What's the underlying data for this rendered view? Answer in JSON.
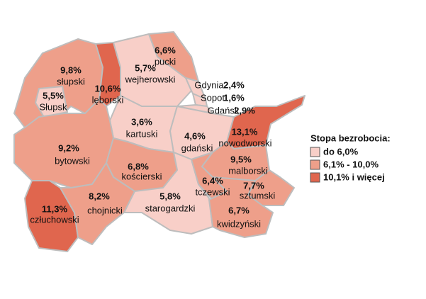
{
  "map": {
    "regions": [
      {
        "name": "słupski",
        "value": 9.8,
        "value_label": "9,8%",
        "color": "#ee9f8a"
      },
      {
        "name": "Słupsk",
        "value": 5.5,
        "value_label": "5,5%",
        "color": "#f8cfc8"
      },
      {
        "name": "lęborski",
        "value": 10.6,
        "value_label": "10,6%",
        "color": "#e0664e"
      },
      {
        "name": "wejherowski",
        "value": 5.7,
        "value_label": "5,7%",
        "color": "#f8cfc8"
      },
      {
        "name": "pucki",
        "value": 6.6,
        "value_label": "6,6%",
        "color": "#ee9f8a"
      },
      {
        "name": "kartuski",
        "value": 3.6,
        "value_label": "3,6%",
        "color": "#f8cfc8"
      },
      {
        "name": "gdański",
        "value": 4.6,
        "value_label": "4,6%",
        "color": "#f8cfc8"
      },
      {
        "name": "nowodworski",
        "value": 13.1,
        "value_label": "13,1%",
        "color": "#e0664e"
      },
      {
        "name": "bytowski",
        "value": 9.2,
        "value_label": "9,2%",
        "color": "#ee9f8a"
      },
      {
        "name": "kościerski",
        "value": 6.8,
        "value_label": "6,8%",
        "color": "#ee9f8a"
      },
      {
        "name": "człuchowski",
        "value": 11.3,
        "value_label": "11,3%",
        "color": "#e0664e"
      },
      {
        "name": "chojnicki",
        "value": 8.2,
        "value_label": "8,2%",
        "color": "#ee9f8a"
      },
      {
        "name": "starogardzki",
        "value": 5.8,
        "value_label": "5,8%",
        "color": "#f8cfc8"
      },
      {
        "name": "tczewski",
        "value": 6.4,
        "value_label": "6,4%",
        "color": "#ee9f8a"
      },
      {
        "name": "malborski",
        "value": 9.5,
        "value_label": "9,5%",
        "color": "#ee9f8a"
      },
      {
        "name": "sztumski",
        "value": 7.7,
        "value_label": "7,7%",
        "color": "#ee9f8a"
      },
      {
        "name": "kwidzyński",
        "value": 6.7,
        "value_label": "6,7%",
        "color": "#ee9f8a"
      }
    ],
    "cities": [
      {
        "name": "Gdynia",
        "value": 2.4,
        "value_label": "2,4%",
        "color": "#f8cfc8"
      },
      {
        "name": "Sopot",
        "value": 1.6,
        "value_label": "1,6%",
        "color": "#f8cfc8"
      },
      {
        "name": "Gdańsk",
        "value": 2.9,
        "value_label": "2,9%",
        "color": "#f8cfc8"
      }
    ],
    "legend": {
      "title": "Stopa bezrobocia:",
      "items": [
        {
          "label": "do 6,0%",
          "color": "#f8cfc8"
        },
        {
          "label": "6,1% - 10,0%",
          "color": "#ee9f8a"
        },
        {
          "label": "10,1% i więcej",
          "color": "#e0664e"
        }
      ]
    }
  }
}
